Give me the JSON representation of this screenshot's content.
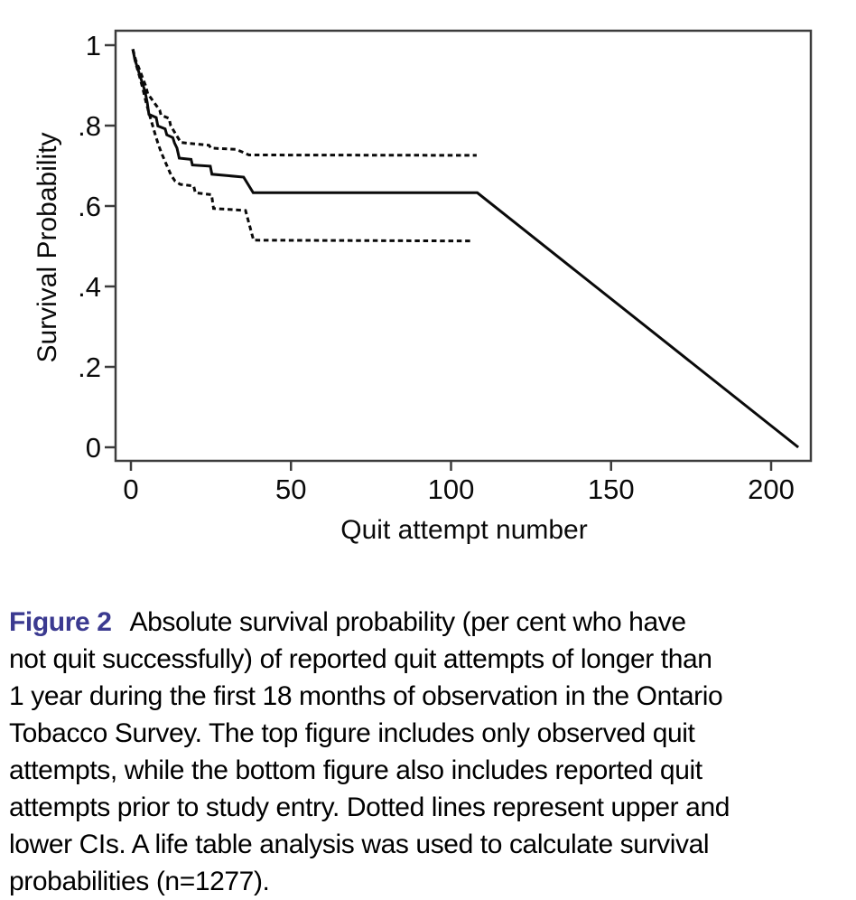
{
  "figure": {
    "y_axis_label": "Survival Probability",
    "x_axis_label": "Quit attempt number"
  },
  "chart_data": {
    "type": "line",
    "title": "",
    "xlabel": "Quit attempt number",
    "ylabel": "Survival Probability",
    "xlim": [
      0,
      212
    ],
    "ylim": [
      0,
      1.03
    ],
    "grid": false,
    "legend": "none",
    "frame": true,
    "x_ticks": [
      {
        "v": 0,
        "label": "0"
      },
      {
        "v": 50,
        "label": "50"
      },
      {
        "v": 100,
        "label": "100"
      },
      {
        "v": 150,
        "label": "150"
      },
      {
        "v": 200,
        "label": "200"
      }
    ],
    "y_ticks": [
      {
        "v": 1,
        "label": "1"
      },
      {
        "v": 0.8,
        "label": ".8"
      },
      {
        "v": 0.6,
        "label": ".6"
      },
      {
        "v": 0.4,
        "label": ".4"
      },
      {
        "v": 0.2,
        "label": ".2"
      },
      {
        "v": 0,
        "label": "0"
      }
    ],
    "series": [
      {
        "name": "survival-estimate",
        "line_style": "solid",
        "color": "#0a0a0a",
        "points": [
          [
            0.6,
            0.99
          ],
          [
            1.2,
            0.965
          ],
          [
            2,
            0.945
          ],
          [
            2.8,
            0.925
          ],
          [
            3.6,
            0.905
          ],
          [
            4.4,
            0.885
          ],
          [
            5.1,
            0.857
          ],
          [
            5.6,
            0.828
          ],
          [
            7.9,
            0.82
          ],
          [
            8.4,
            0.799
          ],
          [
            10.7,
            0.792
          ],
          [
            11.2,
            0.777
          ],
          [
            13.1,
            0.77
          ],
          [
            13.6,
            0.757
          ],
          [
            14.4,
            0.744
          ],
          [
            15.1,
            0.719
          ],
          [
            18.8,
            0.716
          ],
          [
            19.2,
            0.702
          ],
          [
            24.8,
            0.699
          ],
          [
            25.3,
            0.679
          ],
          [
            35.2,
            0.672
          ],
          [
            38.2,
            0.633
          ],
          [
            108.2,
            0.633
          ],
          [
            208.5,
            0
          ]
        ]
      },
      {
        "name": "upper-ci",
        "line_style": "dashed",
        "color": "#0a0a0a",
        "points": [
          [
            0.6,
            0.99
          ],
          [
            1.5,
            0.963
          ],
          [
            2.5,
            0.943
          ],
          [
            3.5,
            0.922
          ],
          [
            4.5,
            0.901
          ],
          [
            5.3,
            0.878
          ],
          [
            6.2,
            0.869
          ],
          [
            7,
            0.86
          ],
          [
            8,
            0.849
          ],
          [
            9,
            0.838
          ],
          [
            9.4,
            0.826
          ],
          [
            11.9,
            0.818
          ],
          [
            12.4,
            0.8
          ],
          [
            13.9,
            0.78
          ],
          [
            15.6,
            0.758
          ],
          [
            24.4,
            0.751
          ],
          [
            25,
            0.744
          ],
          [
            32.9,
            0.741
          ],
          [
            36.9,
            0.727
          ],
          [
            108,
            0.726
          ]
        ]
      },
      {
        "name": "lower-ci",
        "line_style": "dashed",
        "color": "#0a0a0a",
        "points": [
          [
            0.6,
            0.99
          ],
          [
            1.5,
            0.955
          ],
          [
            2.6,
            0.925
          ],
          [
            3.6,
            0.895
          ],
          [
            4.6,
            0.862
          ],
          [
            5.6,
            0.832
          ],
          [
            6.6,
            0.805
          ],
          [
            7.6,
            0.778
          ],
          [
            8.6,
            0.752
          ],
          [
            9.6,
            0.731
          ],
          [
            10.6,
            0.712
          ],
          [
            11.6,
            0.694
          ],
          [
            12.6,
            0.676
          ],
          [
            13.8,
            0.662
          ],
          [
            15.4,
            0.654
          ],
          [
            19.6,
            0.65
          ],
          [
            20.1,
            0.633
          ],
          [
            25.2,
            0.628
          ],
          [
            25.8,
            0.594
          ],
          [
            35.8,
            0.589
          ],
          [
            38.3,
            0.515
          ],
          [
            107,
            0.513
          ]
        ]
      }
    ]
  },
  "caption": {
    "label": "Figure 2",
    "label_color": "#3b3a90",
    "lines": [
      "Absolute survival probability (per cent who have",
      "not quit successfully) of reported quit attempts of longer than",
      "1 year during the first 18 months of observation in the Ontario",
      "Tobacco Survey. The top figure includes only observed quit",
      "attempts, while the bottom figure also includes reported quit",
      "attempts prior to study entry. Dotted lines represent upper and",
      "lower CIs. A life table analysis was used to calculate survival",
      "probabilities (n=1277)."
    ]
  }
}
